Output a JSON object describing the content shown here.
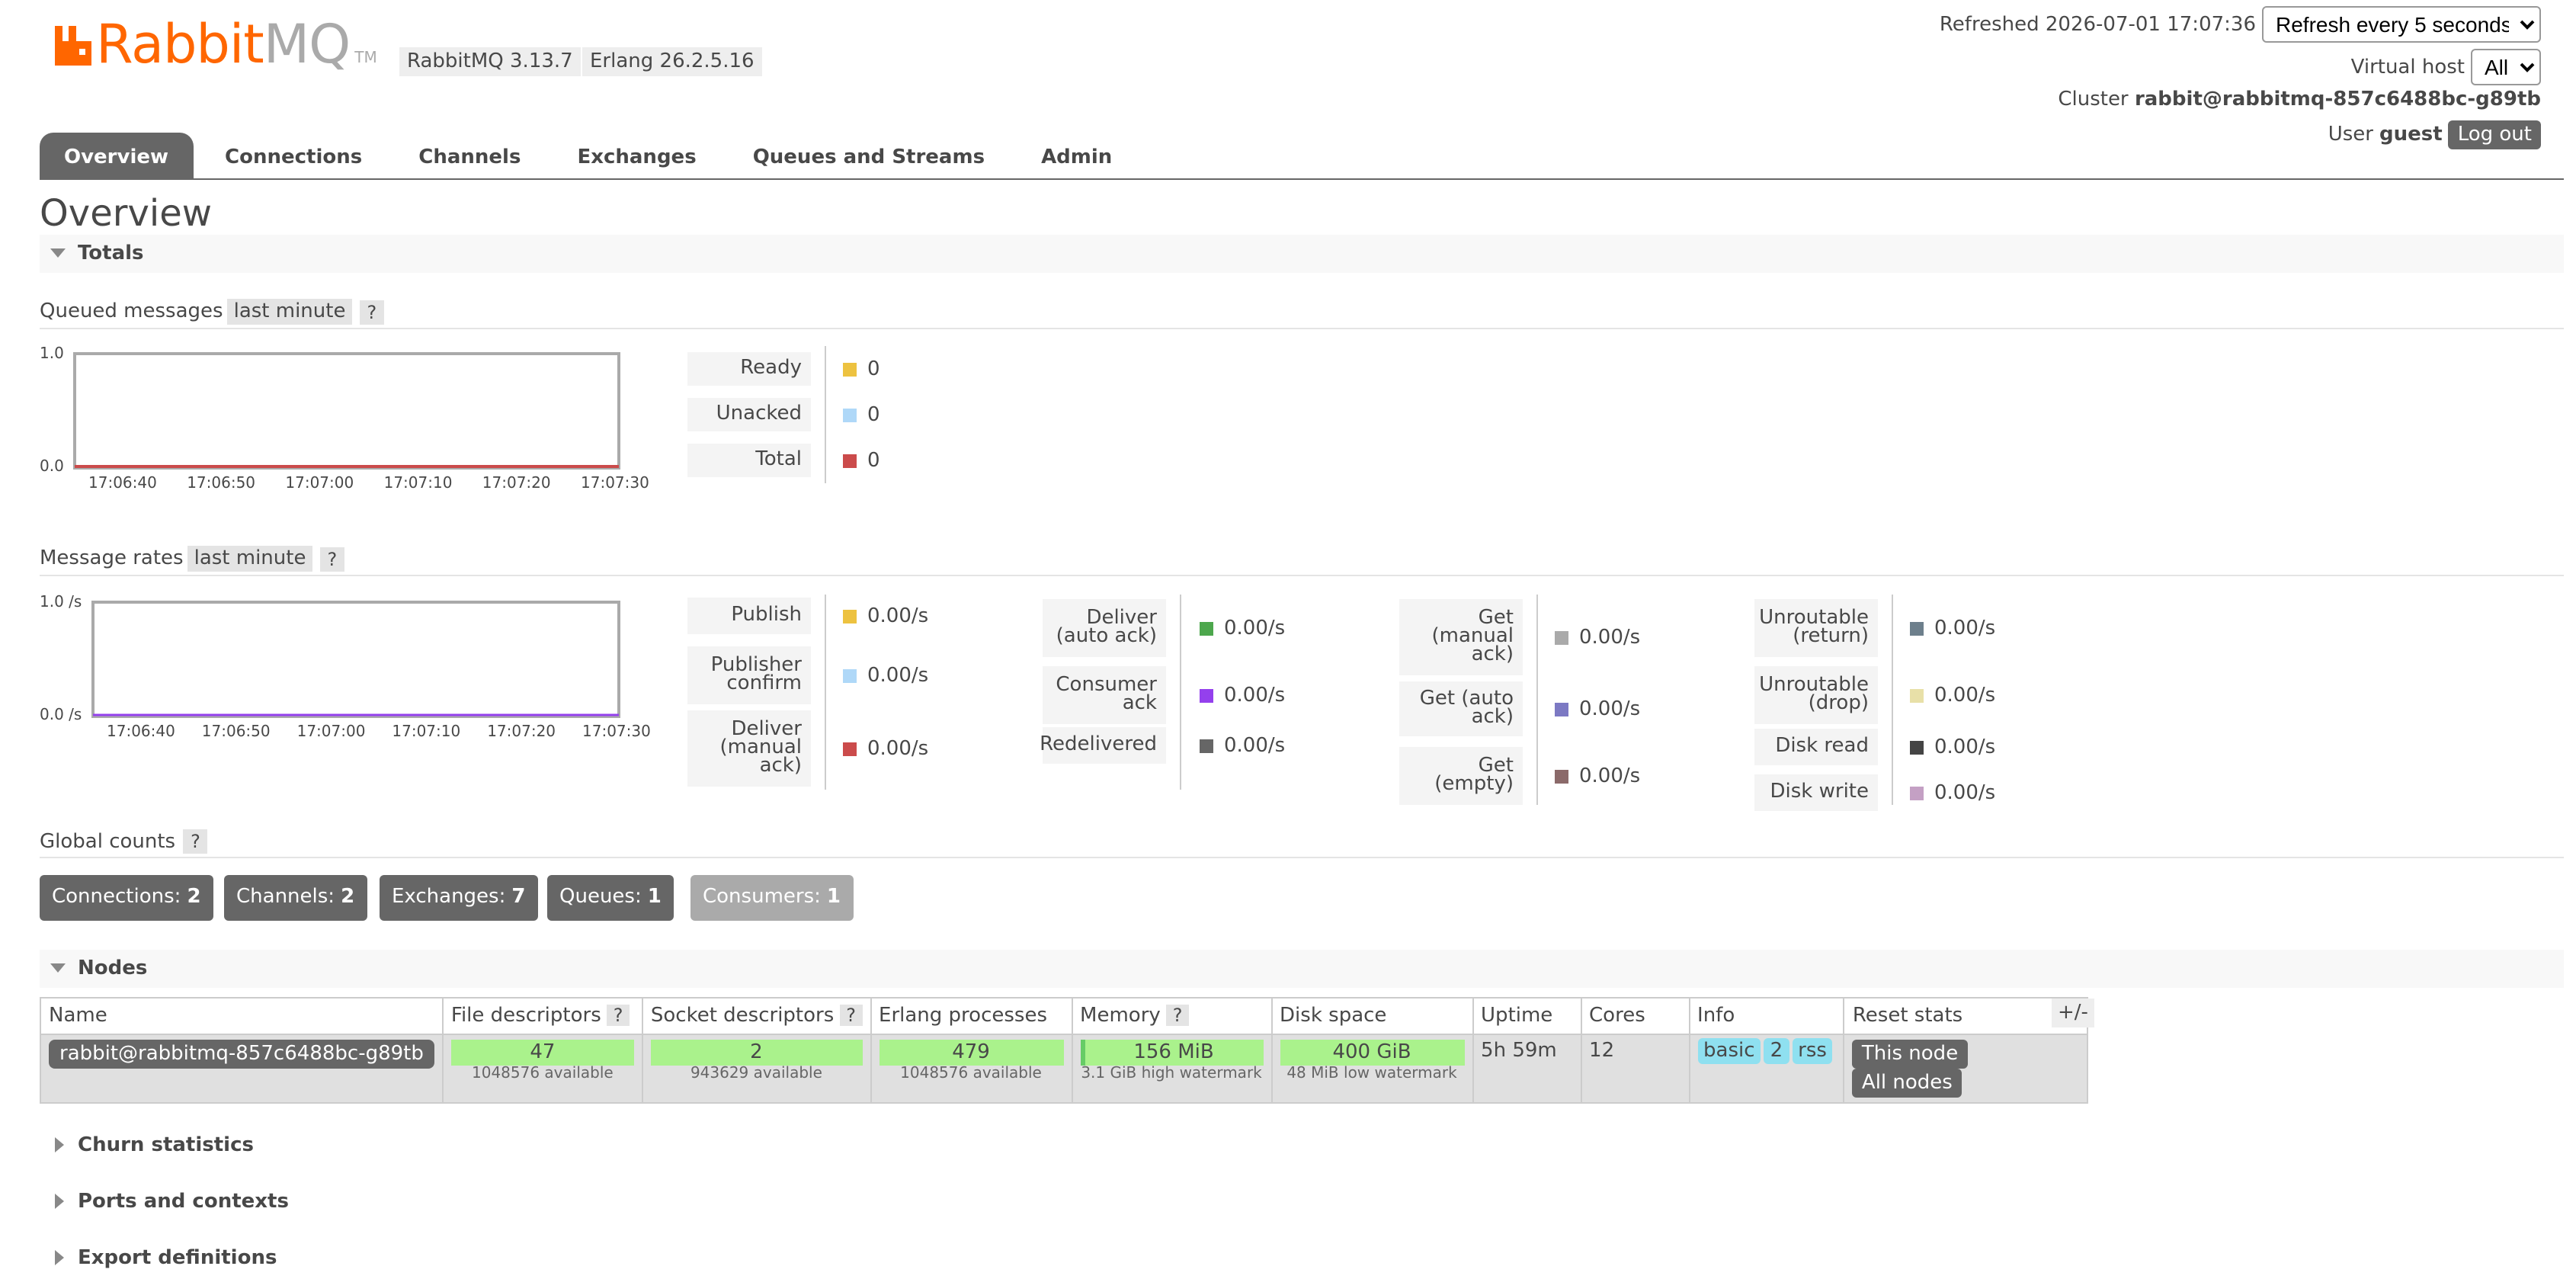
{
  "brand": {
    "name_part1": "Rabbit",
    "name_part2": "MQ",
    "tm": "TM",
    "version": "RabbitMQ 3.13.7",
    "erlang": "Erlang 26.2.5.16"
  },
  "header": {
    "refreshed_label": "Refreshed 2026-07-01 17:07:36",
    "refresh_select": "Refresh every 5 seconds",
    "vhost_label": "Virtual host",
    "vhost_select": "All",
    "cluster_label": "Cluster",
    "cluster_name": "rabbit@rabbitmq-857c6488bc-g89tb",
    "user_label": "User",
    "user_name": "guest",
    "logout": "Log out"
  },
  "tabs": [
    "Overview",
    "Connections",
    "Channels",
    "Exchanges",
    "Queues and Streams",
    "Admin"
  ],
  "page_title": "Overview",
  "sections": {
    "totals": "Totals",
    "nodes": "Nodes",
    "churn": "Churn statistics",
    "ports": "Ports and contexts",
    "export": "Export definitions"
  },
  "queued": {
    "title": "Queued messages",
    "range": "last minute",
    "help": "?",
    "ymax": "1.0",
    "ymin": "0.0",
    "xticks": [
      "17:06:40",
      "17:06:50",
      "17:07:00",
      "17:07:10",
      "17:07:20",
      "17:07:30"
    ],
    "rows": [
      {
        "label": "Ready",
        "value": "0",
        "color": "#edc240"
      },
      {
        "label": "Unacked",
        "value": "0",
        "color": "#afd8f8"
      },
      {
        "label": "Total",
        "value": "0",
        "color": "#cb4b4b"
      }
    ]
  },
  "rates": {
    "title": "Message rates",
    "range": "last minute",
    "help": "?",
    "ymax": "1.0 /s",
    "ymin": "0.0 /s",
    "xticks": [
      "17:06:40",
      "17:06:50",
      "17:07:00",
      "17:07:10",
      "17:07:20",
      "17:07:30"
    ],
    "col1": [
      {
        "label": "Publish",
        "value": "0.00/s",
        "color": "#edc240"
      },
      {
        "label": "Publisher\nconfirm",
        "value": "0.00/s",
        "color": "#afd8f8"
      },
      {
        "label": "Deliver\n(manual\nack)",
        "value": "0.00/s",
        "color": "#cb4b4b"
      }
    ],
    "col2": [
      {
        "label": "Deliver\n(auto ack)",
        "value": "0.00/s",
        "color": "#4da74d"
      },
      {
        "label": "Consumer\nack",
        "value": "0.00/s",
        "color": "#9440ed"
      },
      {
        "label": "Redelivered",
        "value": "0.00/s",
        "color": "#666666"
      }
    ],
    "col3": [
      {
        "label": "Get\n(manual\nack)",
        "value": "0.00/s",
        "color": "#aaaaaa"
      },
      {
        "label": "Get (auto\nack)",
        "value": "0.00/s",
        "color": "#7c79c3"
      },
      {
        "label": "Get\n(empty)",
        "value": "0.00/s",
        "color": "#8b6a6a"
      }
    ],
    "col4": [
      {
        "label": "Unroutable\n(return)",
        "value": "0.00/s",
        "color": "#6d7f8c"
      },
      {
        "label": "Unroutable\n(drop)",
        "value": "0.00/s",
        "color": "#e8e0a8"
      },
      {
        "label": "Disk read",
        "value": "0.00/s",
        "color": "#444444"
      },
      {
        "label": "Disk write",
        "value": "0.00/s",
        "color": "#c4a0c4"
      }
    ]
  },
  "global": {
    "title": "Global counts",
    "help": "?",
    "items": [
      {
        "label": "Connections:",
        "value": "2"
      },
      {
        "label": "Channels:",
        "value": "2"
      },
      {
        "label": "Exchanges:",
        "value": "7"
      },
      {
        "label": "Queues:",
        "value": "1"
      },
      {
        "label": "Consumers:",
        "value": "1"
      }
    ]
  },
  "nodes": {
    "headers": {
      "name": "Name",
      "fd": "File descriptors",
      "sd": "Socket descriptors",
      "ep": "Erlang processes",
      "mem": "Memory",
      "disk": "Disk space",
      "uptime": "Uptime",
      "cores": "Cores",
      "info": "Info",
      "reset": "Reset stats",
      "help": "?"
    },
    "row": {
      "name": "rabbit@rabbitmq-857c6488bc-g89tb",
      "fd": "47",
      "fd_sub": "1048576 available",
      "sd": "2",
      "sd_sub": "943629 available",
      "ep": "479",
      "ep_sub": "1048576 available",
      "mem": "156 MiB",
      "mem_sub": "3.1 GiB high watermark",
      "disk": "400 GiB",
      "disk_sub": "48 MiB low watermark",
      "uptime": "5h 59m",
      "cores": "12",
      "info": [
        "basic",
        "2",
        "rss"
      ],
      "reset_this": "This node",
      "reset_all": "All nodes"
    },
    "plus_minus": "+/-"
  }
}
